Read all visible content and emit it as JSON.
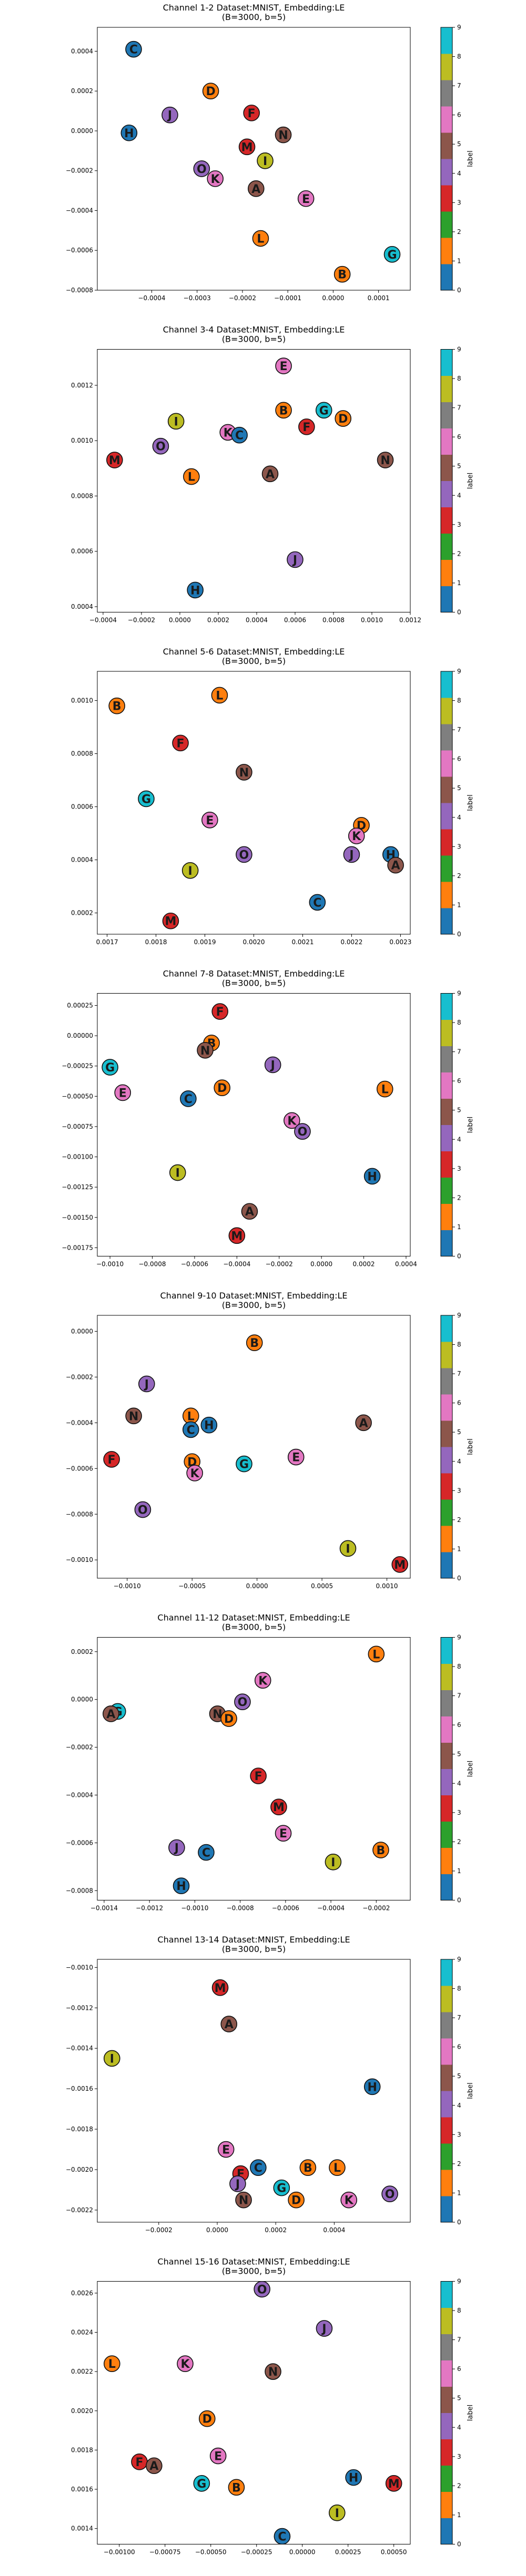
{
  "palette": [
    "#1f77b4",
    "#ff7f0e",
    "#2ca02c",
    "#d62728",
    "#9467bd",
    "#8c564b",
    "#e377c2",
    "#7f7f7f",
    "#bcbd22",
    "#17becf"
  ],
  "letter_color_index": {
    "A": 5,
    "B": 1,
    "C": 0,
    "D": 1,
    "E": 6,
    "F": 3,
    "G": 9,
    "H": 0,
    "I": 8,
    "J": 4,
    "K": 6,
    "L": 1,
    "M": 3,
    "N": 5,
    "O": 4
  },
  "colorbar": {
    "label": "label",
    "ticks": [
      "0",
      "1",
      "2",
      "3",
      "4",
      "5",
      "6",
      "7",
      "8",
      "9"
    ]
  },
  "chart_data": [
    {
      "type": "scatter",
      "title": [
        "Channel 1-2 Dataset:MNIST, Embedding:LE",
        "(B=3000, b=5)"
      ],
      "xlim": [
        -0.00052,
        0.00017
      ],
      "ylim": [
        -0.0008,
        0.00052
      ],
      "xticks": [
        -0.0004,
        -0.0003,
        -0.0002,
        -0.0001,
        0.0,
        0.0001
      ],
      "xtick_labels": [
        "−0.0004",
        "−0.0003",
        "−0.0002",
        "−0.0001",
        "0.0000",
        "0.0001"
      ],
      "yticks": [
        -0.0008,
        -0.0006,
        -0.0004,
        -0.0002,
        0.0,
        0.0002,
        0.0004
      ],
      "ytick_labels": [
        "−0.0008",
        "−0.0006",
        "−0.0004",
        "−0.0002",
        "0.0000",
        "0.0002",
        "0.0004"
      ],
      "points": [
        {
          "label": "C",
          "x": -0.00044,
          "y": 0.00041
        },
        {
          "label": "D",
          "x": -0.00027,
          "y": 0.0002
        },
        {
          "label": "F",
          "x": -0.00018,
          "y": 9e-05
        },
        {
          "label": "J",
          "x": -0.00036,
          "y": 8e-05
        },
        {
          "label": "N",
          "x": -0.00011,
          "y": -2e-05
        },
        {
          "label": "H",
          "x": -0.00045,
          "y": -1e-05
        },
        {
          "label": "M",
          "x": -0.00019,
          "y": -8e-05
        },
        {
          "label": "I",
          "x": -0.00015,
          "y": -0.00015
        },
        {
          "label": "O",
          "x": -0.00029,
          "y": -0.00019
        },
        {
          "label": "K",
          "x": -0.00026,
          "y": -0.00024
        },
        {
          "label": "A",
          "x": -0.00017,
          "y": -0.00029
        },
        {
          "label": "E",
          "x": -6e-05,
          "y": -0.00034
        },
        {
          "label": "L",
          "x": -0.00016,
          "y": -0.00054
        },
        {
          "label": "G",
          "x": 0.00013,
          "y": -0.00062
        },
        {
          "label": "B",
          "x": 2e-05,
          "y": -0.00072
        }
      ]
    },
    {
      "type": "scatter",
      "title": [
        "Channel 3-4 Dataset:MNIST, Embedding:LE",
        "(B=3000, b=5)"
      ],
      "xlim": [
        -0.00043,
        0.0012
      ],
      "ylim": [
        0.00038,
        0.00133
      ],
      "xticks": [
        -0.0004,
        -0.0002,
        0.0,
        0.0002,
        0.0004,
        0.0006,
        0.0008,
        0.001,
        0.0012
      ],
      "xtick_labels": [
        "−0.0004",
        "−0.0002",
        "0.0000",
        "0.0002",
        "0.0004",
        "0.0006",
        "0.0008",
        "0.0010",
        "0.0012"
      ],
      "yticks": [
        0.0004,
        0.0006,
        0.0008,
        0.001,
        0.0012
      ],
      "ytick_labels": [
        "0.0004",
        "0.0006",
        "0.0008",
        "0.0010",
        "0.0012"
      ],
      "points": [
        {
          "label": "E",
          "x": 0.00054,
          "y": 0.00127
        },
        {
          "label": "B",
          "x": 0.00054,
          "y": 0.00111
        },
        {
          "label": "G",
          "x": 0.00075,
          "y": 0.00111
        },
        {
          "label": "D",
          "x": 0.00085,
          "y": 0.00108
        },
        {
          "label": "I",
          "x": -2e-05,
          "y": 0.00107
        },
        {
          "label": "F",
          "x": 0.00066,
          "y": 0.00105
        },
        {
          "label": "K",
          "x": 0.00025,
          "y": 0.00103
        },
        {
          "label": "C",
          "x": 0.00031,
          "y": 0.00102
        },
        {
          "label": "O",
          "x": -0.0001,
          "y": 0.00098
        },
        {
          "label": "M",
          "x": -0.00034,
          "y": 0.00093
        },
        {
          "label": "N",
          "x": 0.00107,
          "y": 0.00093
        },
        {
          "label": "L",
          "x": 6e-05,
          "y": 0.00087
        },
        {
          "label": "A",
          "x": 0.00047,
          "y": 0.00088
        },
        {
          "label": "J",
          "x": 0.0006,
          "y": 0.00057
        },
        {
          "label": "H",
          "x": 8e-05,
          "y": 0.00046
        }
      ]
    },
    {
      "type": "scatter",
      "title": [
        "Channel 5-6 Dataset:MNIST, Embedding:LE",
        "(B=3000, b=5)"
      ],
      "xlim": [
        0.00168,
        0.00232
      ],
      "ylim": [
        0.00012,
        0.00111
      ],
      "xticks": [
        0.0017,
        0.0018,
        0.0019,
        0.002,
        0.0021,
        0.0022,
        0.0023
      ],
      "xtick_labels": [
        "0.0017",
        "0.0018",
        "0.0019",
        "0.0020",
        "0.0021",
        "0.0022",
        "0.0023"
      ],
      "yticks": [
        0.0002,
        0.0004,
        0.0006,
        0.0008,
        0.001
      ],
      "ytick_labels": [
        "0.0002",
        "0.0004",
        "0.0006",
        "0.0008",
        "0.0010"
      ],
      "points": [
        {
          "label": "B",
          "x": 0.00172,
          "y": 0.00098
        },
        {
          "label": "L",
          "x": 0.00193,
          "y": 0.00102
        },
        {
          "label": "F",
          "x": 0.00185,
          "y": 0.00084
        },
        {
          "label": "N",
          "x": 0.00198,
          "y": 0.00073
        },
        {
          "label": "G",
          "x": 0.00178,
          "y": 0.00063
        },
        {
          "label": "E",
          "x": 0.00191,
          "y": 0.00055
        },
        {
          "label": "D",
          "x": 0.00222,
          "y": 0.00053
        },
        {
          "label": "K",
          "x": 0.00221,
          "y": 0.00049
        },
        {
          "label": "O",
          "x": 0.00198,
          "y": 0.00042
        },
        {
          "label": "J",
          "x": 0.0022,
          "y": 0.00042
        },
        {
          "label": "H",
          "x": 0.00228,
          "y": 0.00042
        },
        {
          "label": "A",
          "x": 0.00229,
          "y": 0.00038
        },
        {
          "label": "I",
          "x": 0.00187,
          "y": 0.00036
        },
        {
          "label": "C",
          "x": 0.00213,
          "y": 0.00024
        },
        {
          "label": "M",
          "x": 0.00183,
          "y": 0.00017
        }
      ]
    },
    {
      "type": "scatter",
      "title": [
        "Channel 7-8 Dataset:MNIST, Embedding:LE",
        "(B=3000, b=5)"
      ],
      "xlim": [
        -0.00106,
        0.00042
      ],
      "ylim": [
        -0.00182,
        0.00035
      ],
      "xticks": [
        -0.001,
        -0.0008,
        -0.0006,
        -0.0004,
        -0.0002,
        0.0,
        0.0002,
        0.0004
      ],
      "xtick_labels": [
        "−0.0010",
        "−0.0008",
        "−0.0006",
        "−0.0004",
        "−0.0002",
        "0.0000",
        "0.0002",
        "0.0004"
      ],
      "yticks": [
        -0.00175,
        -0.0015,
        -0.00125,
        -0.001,
        -0.00075,
        -0.0005,
        -0.00025,
        0.0,
        0.00025
      ],
      "ytick_labels": [
        "−0.00175",
        "−0.00150",
        "−0.00125",
        "−0.00100",
        "−0.00075",
        "−0.00050",
        "−0.00025",
        "0.00000",
        "0.00025"
      ],
      "points": [
        {
          "label": "F",
          "x": -0.00048,
          "y": 0.0002
        },
        {
          "label": "B",
          "x": -0.00052,
          "y": -6e-05
        },
        {
          "label": "N",
          "x": -0.00055,
          "y": -0.00012
        },
        {
          "label": "J",
          "x": -0.00023,
          "y": -0.00024
        },
        {
          "label": "G",
          "x": -0.001,
          "y": -0.00026
        },
        {
          "label": "D",
          "x": -0.00047,
          "y": -0.00043
        },
        {
          "label": "L",
          "x": 0.0003,
          "y": -0.00044
        },
        {
          "label": "E",
          "x": -0.00094,
          "y": -0.00047
        },
        {
          "label": "C",
          "x": -0.00063,
          "y": -0.00052
        },
        {
          "label": "K",
          "x": -0.00014,
          "y": -0.0007
        },
        {
          "label": "O",
          "x": -9e-05,
          "y": -0.00079
        },
        {
          "label": "I",
          "x": -0.00068,
          "y": -0.00113
        },
        {
          "label": "H",
          "x": 0.00024,
          "y": -0.00116
        },
        {
          "label": "A",
          "x": -0.00034,
          "y": -0.00145
        },
        {
          "label": "M",
          "x": -0.0004,
          "y": -0.00165
        }
      ]
    },
    {
      "type": "scatter",
      "title": [
        "Channel 9-10 Dataset:MNIST, Embedding:LE",
        "(B=3000, b=5)"
      ],
      "xlim": [
        -0.00123,
        0.00118
      ],
      "ylim": [
        -0.00108,
        7e-05
      ],
      "xticks": [
        -0.001,
        -0.0005,
        0.0,
        0.0005,
        0.001
      ],
      "xtick_labels": [
        "−0.0010",
        "−0.0005",
        "0.0000",
        "0.0005",
        "0.0010"
      ],
      "yticks": [
        -0.001,
        -0.0008,
        -0.0006,
        -0.0004,
        -0.0002,
        0.0
      ],
      "ytick_labels": [
        "−0.0010",
        "−0.0008",
        "−0.0006",
        "−0.0004",
        "−0.0002",
        "0.0000"
      ],
      "points": [
        {
          "label": "B",
          "x": -2e-05,
          "y": -5e-05
        },
        {
          "label": "J",
          "x": -0.00085,
          "y": -0.00023
        },
        {
          "label": "N",
          "x": -0.00095,
          "y": -0.00037
        },
        {
          "label": "L",
          "x": -0.00051,
          "y": -0.00037
        },
        {
          "label": "H",
          "x": -0.00037,
          "y": -0.00041
        },
        {
          "label": "C",
          "x": -0.00051,
          "y": -0.00043
        },
        {
          "label": "A",
          "x": 0.00082,
          "y": -0.0004
        },
        {
          "label": "F",
          "x": -0.00112,
          "y": -0.00056
        },
        {
          "label": "E",
          "x": 0.0003,
          "y": -0.00055
        },
        {
          "label": "D",
          "x": -0.0005,
          "y": -0.00057
        },
        {
          "label": "G",
          "x": -0.0001,
          "y": -0.00058
        },
        {
          "label": "K",
          "x": -0.00048,
          "y": -0.00062
        },
        {
          "label": "O",
          "x": -0.00088,
          "y": -0.00078
        },
        {
          "label": "I",
          "x": 0.0007,
          "y": -0.00095
        },
        {
          "label": "M",
          "x": 0.0011,
          "y": -0.00102
        }
      ]
    },
    {
      "type": "scatter",
      "title": [
        "Channel 11-12 Dataset:MNIST, Embedding:LE",
        "(B=3000, b=5)"
      ],
      "xlim": [
        -0.00143,
        -5e-05
      ],
      "ylim": [
        -0.00084,
        0.00026
      ],
      "xticks": [
        -0.0014,
        -0.0012,
        -0.001,
        -0.0008,
        -0.0006,
        -0.0004,
        -0.0002
      ],
      "xtick_labels": [
        "−0.0014",
        "−0.0012",
        "−0.0010",
        "−0.0008",
        "−0.0006",
        "−0.0004",
        "−0.0002"
      ],
      "yticks": [
        -0.0008,
        -0.0006,
        -0.0004,
        -0.0002,
        0.0,
        0.0002
      ],
      "ytick_labels": [
        "−0.0008",
        "−0.0006",
        "−0.0004",
        "−0.0002",
        "0.0000",
        "0.0002"
      ],
      "points": [
        {
          "label": "L",
          "x": -0.0002,
          "y": 0.00019
        },
        {
          "label": "K",
          "x": -0.0007,
          "y": 8e-05
        },
        {
          "label": "O",
          "x": -0.00079,
          "y": -1e-05
        },
        {
          "label": "G",
          "x": -0.00134,
          "y": -5e-05
        },
        {
          "label": "A",
          "x": -0.00137,
          "y": -6e-05
        },
        {
          "label": "N",
          "x": -0.0009,
          "y": -6e-05
        },
        {
          "label": "D",
          "x": -0.00085,
          "y": -8e-05
        },
        {
          "label": "F",
          "x": -0.00072,
          "y": -0.00032
        },
        {
          "label": "M",
          "x": -0.00063,
          "y": -0.00045
        },
        {
          "label": "E",
          "x": -0.00061,
          "y": -0.00056
        },
        {
          "label": "J",
          "x": -0.00108,
          "y": -0.00062
        },
        {
          "label": "C",
          "x": -0.00095,
          "y": -0.00064
        },
        {
          "label": "B",
          "x": -0.00018,
          "y": -0.00063
        },
        {
          "label": "I",
          "x": -0.00039,
          "y": -0.00068
        },
        {
          "label": "H",
          "x": -0.00106,
          "y": -0.00078
        }
      ]
    },
    {
      "type": "scatter",
      "title": [
        "Channel 13-14 Dataset:MNIST, Embedding:LE",
        "(B=3000, b=5)"
      ],
      "xlim": [
        -0.00041,
        0.00066
      ],
      "ylim": [
        -0.00226,
        -0.00096
      ],
      "xticks": [
        -0.0002,
        0.0,
        0.0002,
        0.0004
      ],
      "xtick_labels": [
        "−0.0002",
        "0.0000",
        "0.0002",
        "0.0004"
      ],
      "yticks": [
        -0.0022,
        -0.002,
        -0.0018,
        -0.0016,
        -0.0014,
        -0.0012,
        -0.001
      ],
      "ytick_labels": [
        "−0.0022",
        "−0.0020",
        "−0.0018",
        "−0.0016",
        "−0.0014",
        "−0.0012",
        "−0.0010"
      ],
      "points": [
        {
          "label": "M",
          "x": 1e-05,
          "y": -0.0011
        },
        {
          "label": "A",
          "x": 4e-05,
          "y": -0.00128
        },
        {
          "label": "I",
          "x": -0.00036,
          "y": -0.00145
        },
        {
          "label": "H",
          "x": 0.00053,
          "y": -0.00159
        },
        {
          "label": "E",
          "x": 3e-05,
          "y": -0.0019
        },
        {
          "label": "C",
          "x": 0.00014,
          "y": -0.00199
        },
        {
          "label": "B",
          "x": 0.00031,
          "y": -0.00199
        },
        {
          "label": "L",
          "x": 0.00041,
          "y": -0.00199
        },
        {
          "label": "F",
          "x": 8e-05,
          "y": -0.00202
        },
        {
          "label": "J",
          "x": 7e-05,
          "y": -0.00207
        },
        {
          "label": "G",
          "x": 0.00022,
          "y": -0.00209
        },
        {
          "label": "O",
          "x": 0.00059,
          "y": -0.00212
        },
        {
          "label": "N",
          "x": 9e-05,
          "y": -0.00215
        },
        {
          "label": "D",
          "x": 0.00027,
          "y": -0.00215
        },
        {
          "label": "K",
          "x": 0.00045,
          "y": -0.00215
        }
      ]
    },
    {
      "type": "scatter",
      "title": [
        "Channel 15-16 Dataset:MNIST, Embedding:LE",
        "(B=3000, b=5)"
      ],
      "xlim": [
        -0.00112,
        0.00059
      ],
      "ylim": [
        0.00132,
        0.00266
      ],
      "xticks": [
        -0.001,
        -0.00075,
        -0.0005,
        -0.00025,
        0.0,
        0.00025,
        0.0005
      ],
      "xtick_labels": [
        "−0.00100",
        "−0.00075",
        "−0.00050",
        "−0.00025",
        "0.00000",
        "0.00025",
        "0.00050"
      ],
      "yticks": [
        0.0014,
        0.0016,
        0.0018,
        0.002,
        0.0022,
        0.0024,
        0.0026
      ],
      "ytick_labels": [
        "0.0014",
        "0.0016",
        "0.0018",
        "0.0020",
        "0.0022",
        "0.0024",
        "0.0026"
      ],
      "points": [
        {
          "label": "O",
          "x": -0.00022,
          "y": 0.00262
        },
        {
          "label": "J",
          "x": 0.00012,
          "y": 0.00242
        },
        {
          "label": "L",
          "x": -0.00104,
          "y": 0.00224
        },
        {
          "label": "K",
          "x": -0.00064,
          "y": 0.00224
        },
        {
          "label": "N",
          "x": -0.00016,
          "y": 0.0022
        },
        {
          "label": "D",
          "x": -0.00052,
          "y": 0.00196
        },
        {
          "label": "E",
          "x": -0.00046,
          "y": 0.00177
        },
        {
          "label": "F",
          "x": -0.00089,
          "y": 0.00174
        },
        {
          "label": "A",
          "x": -0.00081,
          "y": 0.00172
        },
        {
          "label": "H",
          "x": 0.00028,
          "y": 0.00166
        },
        {
          "label": "G",
          "x": -0.00055,
          "y": 0.00163
        },
        {
          "label": "B",
          "x": -0.00036,
          "y": 0.00161
        },
        {
          "label": "M",
          "x": 0.0005,
          "y": 0.00163
        },
        {
          "label": "I",
          "x": 0.00019,
          "y": 0.00148
        },
        {
          "label": "C",
          "x": -0.00011,
          "y": 0.00136
        }
      ]
    }
  ]
}
